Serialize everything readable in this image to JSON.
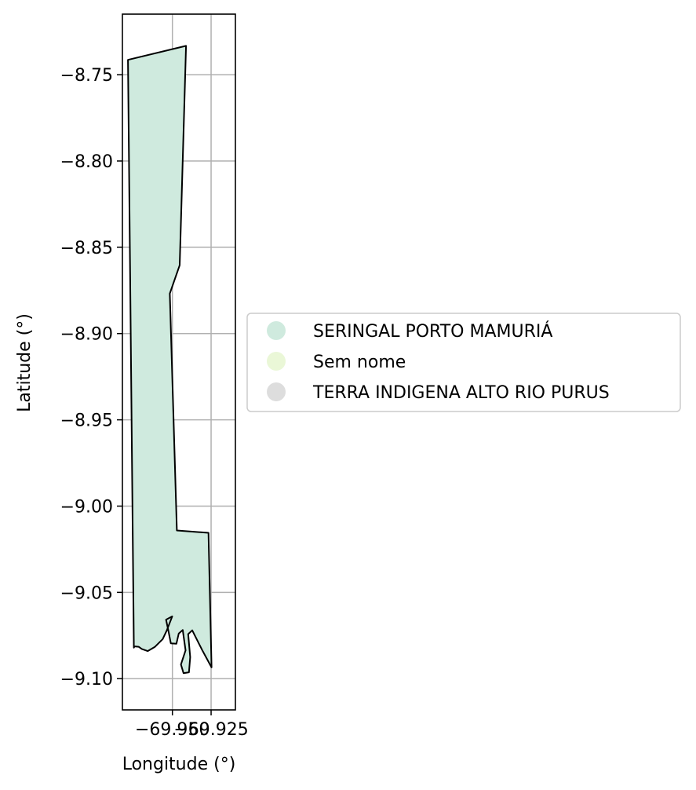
{
  "chart_data": {
    "type": "map",
    "xlabel": "Longitude (°)",
    "ylabel": "Latitude (°)",
    "xlim": [
      -69.9823,
      -69.9093
    ],
    "ylim": [
      -9.1181,
      -8.7149
    ],
    "grid": true,
    "legend_position": "right",
    "x_ticks": [
      {
        "value": -69.95,
        "label": "−69.950"
      },
      {
        "value": -69.925,
        "label": "−69.925"
      }
    ],
    "y_ticks": [
      {
        "value": -8.75,
        "label": "−8.75"
      },
      {
        "value": -8.8,
        "label": "−8.80"
      },
      {
        "value": -8.85,
        "label": "−8.85"
      },
      {
        "value": -8.9,
        "label": "−8.90"
      },
      {
        "value": -8.95,
        "label": "−8.95"
      },
      {
        "value": -9.0,
        "label": "−9.00"
      },
      {
        "value": -9.05,
        "label": "−9.05"
      },
      {
        "value": -9.1,
        "label": "−9.10"
      }
    ],
    "legend": [
      {
        "label": "SERINGAL PORTO MAMURIÁ",
        "color": "#cfeade"
      },
      {
        "label": "Sem nome",
        "color": "#eaf7d7"
      },
      {
        "label": "TERRA INDIGENA ALTO RIO PURUS",
        "color": "#dddddd"
      }
    ],
    "polygon": {
      "name": "SERINGAL PORTO MAMURIÁ",
      "fill": "#cfeade",
      "stroke": "#000000",
      "coordinates": [
        [
          -69.9787,
          -8.7414
        ],
        [
          -69.9412,
          -8.7333
        ],
        [
          -69.9453,
          -8.8604
        ],
        [
          -69.9517,
          -8.8768
        ],
        [
          -69.9471,
          -9.0141
        ],
        [
          -69.9267,
          -9.0155
        ],
        [
          -69.9247,
          -9.0935
        ],
        [
          -69.9308,
          -9.0834
        ],
        [
          -69.9372,
          -9.072
        ],
        [
          -69.9398,
          -9.0742
        ],
        [
          -69.9385,
          -9.0875
        ],
        [
          -69.9393,
          -9.0963
        ],
        [
          -69.9428,
          -9.0968
        ],
        [
          -69.9445,
          -9.0918
        ],
        [
          -69.9415,
          -9.0836
        ],
        [
          -69.9433,
          -9.0718
        ],
        [
          -69.9459,
          -9.0738
        ],
        [
          -69.9474,
          -9.0798
        ],
        [
          -69.951,
          -9.0795
        ],
        [
          -69.9525,
          -9.0727
        ],
        [
          -69.9541,
          -9.0658
        ],
        [
          -69.9501,
          -9.0639
        ],
        [
          -69.9536,
          -9.072
        ],
        [
          -69.9563,
          -9.0771
        ],
        [
          -69.9612,
          -9.0815
        ],
        [
          -69.966,
          -9.084
        ],
        [
          -69.9698,
          -9.0828
        ],
        [
          -69.9718,
          -9.0815
        ],
        [
          -69.9745,
          -9.0813
        ],
        [
          -69.9749,
          -9.082
        ]
      ]
    }
  }
}
